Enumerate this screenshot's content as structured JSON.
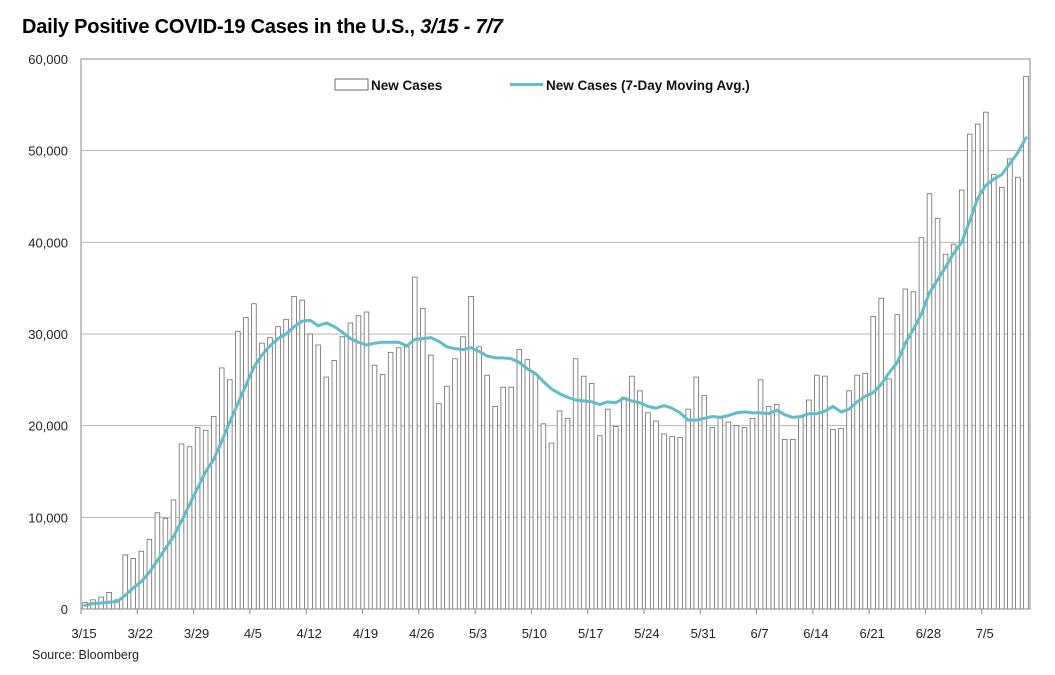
{
  "header": {
    "title_main": "Daily Positive COVID-19 Cases in the U.S.,",
    "title_dates": "3/15 - 7/7"
  },
  "footer": {
    "source": "Source: Bloomberg"
  },
  "colors": {
    "bar_fill": "#ffffff",
    "bar_stroke": "#6b6b6b",
    "line": "#5fbcc9",
    "grid": "#b5b5b5",
    "frame": "#8a8a8a"
  },
  "chart_data": {
    "type": "bar",
    "title": "Daily Positive COVID-19 Cases in the U.S., 3/15 - 7/7",
    "xlabel": "",
    "ylabel": "",
    "ylim": [
      0,
      60000
    ],
    "y_ticks": [
      "0",
      "10,000",
      "20,000",
      "30,000",
      "40,000",
      "50,000",
      "60,000"
    ],
    "y_tick_values": [
      0,
      10000,
      20000,
      30000,
      40000,
      50000,
      60000
    ],
    "x_tick_labels": [
      "3/15",
      "3/22",
      "3/29",
      "4/5",
      "4/12",
      "4/19",
      "4/26",
      "5/3",
      "5/10",
      "5/17",
      "5/24",
      "5/31",
      "6/7",
      "6/14",
      "6/21",
      "6/28",
      "7/5"
    ],
    "start_date": "3/15",
    "grid": true,
    "legend_position": "top-center",
    "series": [
      {
        "name": "New Cases",
        "kind": "bar",
        "values": [
          700,
          1000,
          1300,
          1800,
          1000,
          5900,
          5500,
          6300,
          7600,
          10500,
          9900,
          11900,
          18000,
          17700,
          19800,
          19500,
          21000,
          26300,
          25000,
          30300,
          31800,
          33300,
          29000,
          29600,
          30800,
          31600,
          34100,
          33700,
          30000,
          28800,
          25300,
          27100,
          29700,
          31200,
          32000,
          32400,
          26600,
          25600,
          28000,
          28500,
          28600,
          36200,
          32800,
          27700,
          22400,
          24300,
          27300,
          29700,
          34100,
          28600,
          25500,
          22100,
          24200,
          24200,
          28300,
          27200,
          25600,
          20200,
          18100,
          21600,
          20800,
          27300,
          25400,
          24600,
          18900,
          21800,
          19900,
          23100,
          25400,
          23800,
          21400,
          20500,
          19100,
          18800,
          18700,
          21800,
          25300,
          23300,
          19800,
          21000,
          20400,
          20000,
          19800,
          20800,
          25000,
          22100,
          22300,
          18500,
          18500,
          20900,
          22800,
          25500,
          25400,
          19600,
          19700,
          23800,
          25500,
          25700,
          31900,
          33900,
          25100,
          32100,
          34900,
          34600,
          40500,
          45300,
          42600,
          38700,
          39800,
          45700,
          51800,
          52900,
          54200,
          47400,
          46000,
          49100,
          47100,
          58100
        ]
      },
      {
        "name": "New Cases (7-Day Moving Avg.)",
        "kind": "line",
        "values": [
          400,
          600,
          650,
          750,
          800,
          1500,
          2300,
          3000,
          4000,
          5300,
          6600,
          7900,
          9600,
          11400,
          13200,
          15000,
          16300,
          18300,
          20400,
          22400,
          24400,
          26400,
          27700,
          28700,
          29500,
          30000,
          30800,
          31400,
          31500,
          30900,
          31200,
          30800,
          30200,
          29500,
          29100,
          28800,
          29000,
          29100,
          29100,
          29100,
          28700,
          29400,
          29500,
          29600,
          29200,
          28600,
          28400,
          28300,
          28500,
          28100,
          27600,
          27400,
          27400,
          27300,
          26900,
          26200,
          25700,
          24800,
          24000,
          23500,
          23100,
          22800,
          22700,
          22600,
          22300,
          22600,
          22500,
          23000,
          22700,
          22500,
          22100,
          21900,
          22200,
          21900,
          21400,
          20600,
          20600,
          20800,
          21000,
          20900,
          21100,
          21400,
          21500,
          21400,
          21400,
          21300,
          21700,
          21200,
          20900,
          21000,
          21300,
          21300,
          21600,
          22100,
          21500,
          21800,
          22600,
          23200,
          23600,
          24500,
          25800,
          26900,
          29000,
          30500,
          32200,
          34500,
          35900,
          37300,
          38800,
          40000,
          42300,
          44800,
          46200,
          46900,
          47400,
          48600,
          49800,
          51400
        ]
      }
    ]
  }
}
